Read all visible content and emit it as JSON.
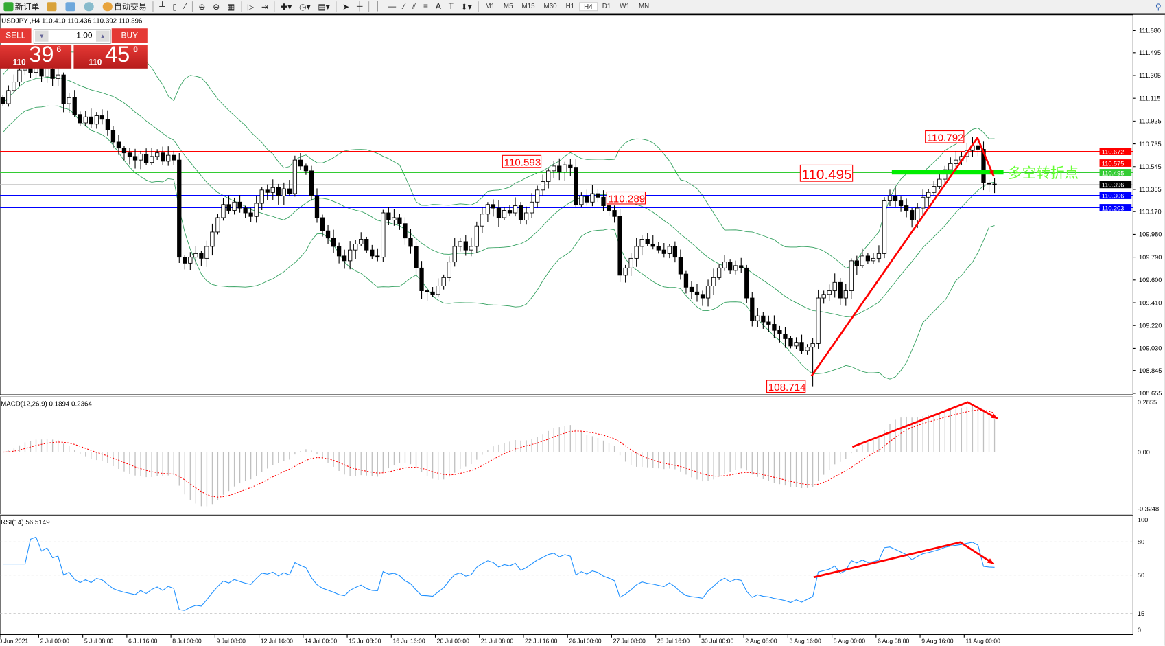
{
  "toolbar": {
    "new_order": "新订单",
    "auto_trading": "自动交易",
    "timeframes": [
      "M1",
      "M5",
      "M15",
      "M30",
      "H1",
      "H4",
      "D1",
      "W1",
      "MN"
    ],
    "active_timeframe": "H4"
  },
  "symbol_line": "USDJPY-,H4  110.410 110.436 110.392 110.396",
  "trade_panel": {
    "sell_label": "SELL",
    "buy_label": "BUY",
    "lot": "1.00",
    "sell_prefix": "110",
    "sell_big": "39",
    "sell_pip": "6",
    "buy_prefix": "110",
    "buy_big": "45",
    "buy_pip": "0"
  },
  "colors": {
    "bull_bear": "#000000",
    "bands": "#2e9e5b",
    "resistance": "#ff0000",
    "pivot": "#33cc33",
    "support": "#0000ff",
    "bid": "#c0c0c0",
    "macd_hist": "#c0c0c0",
    "macd_signal": "#ff0000",
    "rsi": "#1e90ff",
    "arrow": "#ff0000",
    "pivot_text": "#66ff33"
  },
  "chart_data": [
    {
      "type": "candlestick",
      "symbol": "USDJPY-",
      "timeframe": "H4",
      "y_ticks": [
        "111.680",
        "111.495",
        "111.305",
        "111.115",
        "110.925",
        "110.735",
        "110.545",
        "110.355",
        "110.170",
        "109.980",
        "109.790",
        "109.600",
        "109.410",
        "109.220",
        "109.030",
        "108.845",
        "108.655"
      ],
      "ylim": [
        108.655,
        111.68
      ],
      "x_ticks": [
        "30 Jun 2021",
        "2 Jul 00:00",
        "5 Jul 08:00",
        "6 Jul 16:00",
        "8 Jul 00:00",
        "9 Jul 08:00",
        "12 Jul 16:00",
        "14 Jul 00:00",
        "15 Jul 08:00",
        "16 Jul 16:00",
        "20 Jul 00:00",
        "21 Jul 08:00",
        "22 Jul 16:00",
        "26 Jul 00:00",
        "27 Jul 08:00",
        "28 Jul 16:00",
        "30 Jul 00:00",
        "2 Aug 08:00",
        "3 Aug 16:00",
        "5 Aug 00:00",
        "6 Aug 08:00",
        "9 Aug 16:00",
        "11 Aug 00:00"
      ],
      "closes": [
        111.07,
        111.18,
        111.25,
        111.35,
        111.4,
        111.33,
        111.38,
        111.3,
        111.36,
        111.28,
        111.31,
        111.07,
        111.12,
        110.98,
        110.91,
        110.96,
        110.9,
        110.97,
        110.94,
        110.85,
        110.75,
        110.7,
        110.66,
        110.63,
        110.6,
        110.65,
        110.58,
        110.63,
        110.66,
        110.59,
        110.64,
        110.6,
        109.79,
        109.74,
        109.79,
        109.82,
        109.78,
        109.88,
        110.0,
        110.12,
        110.23,
        110.18,
        110.25,
        110.2,
        110.16,
        110.13,
        110.24,
        110.35,
        110.33,
        110.37,
        110.3,
        110.36,
        110.32,
        110.6,
        110.55,
        110.51,
        110.3,
        110.12,
        110.01,
        109.95,
        109.88,
        109.8,
        109.76,
        109.85,
        109.9,
        109.94,
        109.85,
        109.8,
        109.79,
        110.16,
        110.1,
        110.12,
        110.07,
        109.95,
        109.88,
        109.7,
        109.51,
        109.5,
        109.48,
        109.55,
        109.62,
        109.75,
        109.88,
        109.92,
        109.85,
        109.88,
        110.05,
        110.15,
        110.23,
        110.2,
        110.12,
        110.18,
        110.16,
        110.22,
        110.1,
        110.16,
        110.25,
        110.35,
        110.42,
        110.51,
        110.55,
        110.5,
        110.56,
        110.54,
        110.23,
        110.3,
        110.25,
        110.32,
        110.29,
        110.22,
        110.18,
        110.13,
        109.64,
        109.7,
        109.78,
        109.88,
        109.94,
        109.9,
        109.88,
        109.85,
        109.82,
        109.88,
        109.79,
        109.65,
        109.54,
        109.5,
        109.48,
        109.45,
        109.55,
        109.62,
        109.7,
        109.75,
        109.68,
        109.72,
        109.7,
        109.45,
        109.26,
        109.3,
        109.25,
        109.23,
        109.18,
        109.15,
        109.11,
        109.05,
        109.08,
        109.01,
        109.04,
        109.07,
        109.45,
        109.48,
        109.51,
        109.58,
        109.45,
        109.51,
        109.76,
        109.72,
        109.8,
        109.76,
        109.78,
        109.82,
        110.26,
        110.3,
        110.26,
        110.22,
        110.18,
        110.1,
        110.2,
        110.29,
        110.33,
        110.38,
        110.44,
        110.52,
        110.57,
        110.6,
        110.63,
        110.68,
        110.72,
        110.69,
        110.41,
        110.4,
        110.396
      ],
      "horizontal_lines": [
        {
          "price": 110.672,
          "label": "110.672",
          "kind": "resistance"
        },
        {
          "price": 110.575,
          "label": "110.575",
          "kind": "resistance"
        },
        {
          "price": 110.495,
          "label": "110.495",
          "kind": "pivot"
        },
        {
          "price": 110.396,
          "label": "110.396",
          "kind": "bid"
        },
        {
          "price": 110.306,
          "label": "110.306",
          "kind": "support"
        },
        {
          "price": 110.203,
          "label": "110.203",
          "kind": "support"
        }
      ],
      "annotations": [
        {
          "text": "110.593",
          "bar": 100
        },
        {
          "text": "110.289",
          "bar": 108
        },
        {
          "text": "110.495",
          "bar": 150
        },
        {
          "text": "110.792",
          "bar": 176
        },
        {
          "text": "108.714",
          "bar": 147
        }
      ],
      "pivot_text": "多空转折点",
      "indicator": "Bollinger Bands (20,2)"
    },
    {
      "type": "histogram",
      "title": "MACD(12,26,9) 0.1894 0.2364",
      "y_ticks": [
        "0.2855",
        "0.00",
        "-0.3248"
      ],
      "ylim": [
        -0.3248,
        0.2855
      ]
    },
    {
      "type": "line",
      "title": "RSI(14) 56.5149",
      "y_ticks": [
        "100",
        "80",
        "50",
        "15",
        "0"
      ],
      "ylim": [
        0,
        100
      ],
      "levels": [
        80,
        50,
        15
      ]
    }
  ]
}
